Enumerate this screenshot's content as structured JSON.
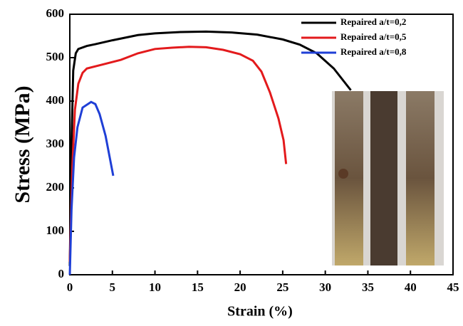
{
  "chart_data": {
    "type": "line",
    "xlabel": "Strain (%)",
    "ylabel": "Stress (MPa)",
    "xlim": [
      0,
      45
    ],
    "ylim": [
      0,
      600
    ],
    "xticks": [
      0,
      5,
      10,
      15,
      20,
      25,
      30,
      35,
      40,
      45
    ],
    "yticks": [
      0,
      100,
      200,
      300,
      400,
      500,
      600
    ],
    "legend": "upper right",
    "series": [
      {
        "name": "Repaired a/t=0,2",
        "color": "#000000",
        "x": [
          0,
          0.2,
          0.4,
          0.7,
          1,
          2,
          3,
          5,
          8,
          10,
          13,
          16,
          19,
          22,
          25,
          27,
          29,
          31,
          33
        ],
        "values": [
          20,
          300,
          470,
          510,
          520,
          527,
          531,
          540,
          552,
          556,
          559,
          560,
          558,
          553,
          542,
          530,
          510,
          475,
          425
        ]
      },
      {
        "name": "Repaired a/t=0,5",
        "color": "#e31a1c",
        "x": [
          0,
          0.3,
          0.6,
          1,
          1.5,
          2,
          4,
          6,
          8,
          10,
          12,
          14,
          16,
          18,
          20,
          21.5,
          22.5,
          23.5,
          24.5,
          25.1,
          25.4
        ],
        "values": [
          30,
          250,
          380,
          440,
          465,
          475,
          485,
          495,
          510,
          520,
          523,
          525,
          524,
          518,
          508,
          493,
          468,
          420,
          360,
          310,
          255
        ]
      },
      {
        "name": "Repaired a/t=0,8",
        "color": "#1f3fd6",
        "x": [
          0,
          0.2,
          0.5,
          0.9,
          1.5,
          2.5,
          3,
          3.5,
          4.2,
          5.1
        ],
        "values": [
          0,
          150,
          270,
          340,
          385,
          398,
          393,
          370,
          320,
          228
        ]
      }
    ]
  }
}
